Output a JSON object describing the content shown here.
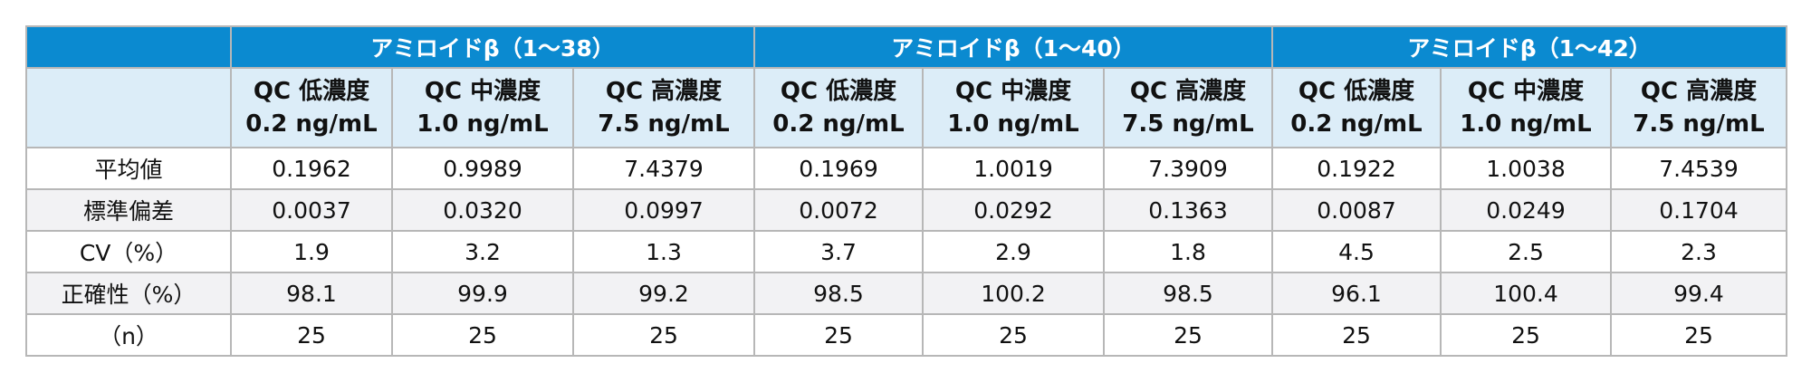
{
  "groups": [
    "アミロイドβ（1～38）",
    "アミロイドβ（1～40）",
    "アミロイドβ（1～42）"
  ],
  "subheaders": [
    {
      "line1": "QC 低濃度",
      "line2": "0.2 ng/mL"
    },
    {
      "line1": "QC 中濃度",
      "line2": "1.0 ng/mL"
    },
    {
      "line1": "QC 高濃度",
      "line2": "7.5 ng/mL"
    }
  ],
  "rows": [
    {
      "label": "平均値",
      "values": [
        "0.1962",
        "0.9989",
        "7.4379",
        "0.1969",
        "1.0019",
        "7.3909",
        "0.1922",
        "1.0038",
        "7.4539"
      ]
    },
    {
      "label": "標準偏差",
      "values": [
        "0.0037",
        "0.0320",
        "0.0997",
        "0.0072",
        "0.0292",
        "0.1363",
        "0.0087",
        "0.0249",
        "0.1704"
      ]
    },
    {
      "label": "CV（%）",
      "values": [
        "1.9",
        "3.2",
        "1.3",
        "3.7",
        "2.9",
        "1.8",
        "4.5",
        "2.5",
        "2.3"
      ]
    },
    {
      "label": "正確性（%）",
      "values": [
        "98.1",
        "99.9",
        "99.2",
        "98.5",
        "100.2",
        "98.5",
        "96.1",
        "100.4",
        "99.4"
      ]
    },
    {
      "label": "（n）",
      "values": [
        "25",
        "25",
        "25",
        "25",
        "25",
        "25",
        "25",
        "25",
        "25"
      ]
    }
  ],
  "colors": {
    "header_blue": "#0b8ad0",
    "subheader_bg": "#dcedf8",
    "stripe": "#f2f2f4",
    "border": "#b7b7b7"
  }
}
